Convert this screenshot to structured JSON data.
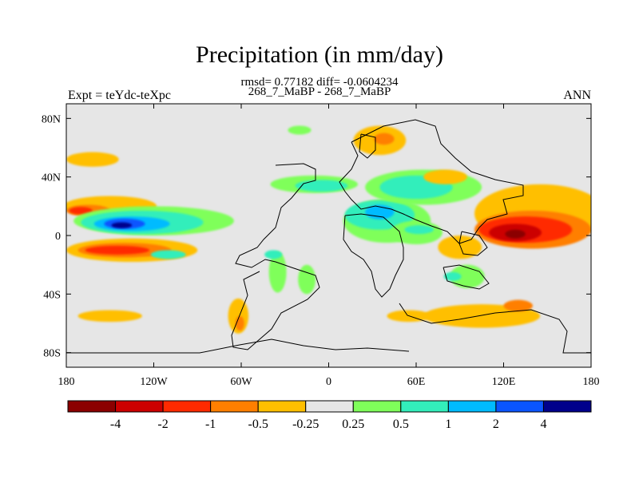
{
  "chart_data": {
    "type": "heatmap",
    "title": "Precipitation (in mm/day)",
    "subtitle_stats": "rmsd= 0.77182 diff= -0.0604234",
    "subtitle_cases": "268_7_MaBP - 268_7_MaBP",
    "left_label": "Expt = teYdc-teXpc",
    "right_label": "ANN",
    "xlim": [
      -180,
      180
    ],
    "ylim": [
      -90,
      90
    ],
    "x_ticks": [
      {
        "value": -180,
        "label": "180"
      },
      {
        "value": -120,
        "label": "120W"
      },
      {
        "value": -60,
        "label": "60W"
      },
      {
        "value": 0,
        "label": "0"
      },
      {
        "value": 60,
        "label": "60E"
      },
      {
        "value": 120,
        "label": "120E"
      },
      {
        "value": 180,
        "label": "180"
      }
    ],
    "y_ticks": [
      {
        "value": 80,
        "label": "80N"
      },
      {
        "value": 40,
        "label": "40N"
      },
      {
        "value": 0,
        "label": "0"
      },
      {
        "value": -40,
        "label": "40S"
      },
      {
        "value": -80,
        "label": "80S"
      }
    ],
    "colorbar": {
      "colors": [
        "#8b0000",
        "#cc0000",
        "#ff2a00",
        "#ff7f00",
        "#ffbf00",
        "#e6e6e6",
        "#7fff5a",
        "#33eebb",
        "#00bbff",
        "#0a55ff",
        "#00008b"
      ],
      "levels": [
        "-4",
        "-2",
        "-1",
        "-0.5",
        "-0.25",
        "0.25",
        "0.5",
        "1",
        "2",
        "4"
      ]
    },
    "regions": [
      {
        "name": "n-pacific-drying",
        "value": -0.3,
        "color": "#ffbf00",
        "lon": -150,
        "lat": 20,
        "rlon": 32,
        "rlat": 7
      },
      {
        "name": "n-pacific-drying-core",
        "value": -0.7,
        "color": "#ff7f00",
        "lon": -165,
        "lat": 17,
        "rlon": 15,
        "rlat": 4
      },
      {
        "name": "n-pacific-drying-strong",
        "value": -1.5,
        "color": "#ff2a00",
        "lon": -170,
        "lat": 17,
        "rlon": 8,
        "rlat": 2.5
      },
      {
        "name": "n-pacific-midlat-dry",
        "value": -0.3,
        "color": "#ffbf00",
        "lon": -162,
        "lat": 52,
        "rlon": 18,
        "rlat": 5
      },
      {
        "name": "pacific-itcz-wet",
        "value": 0.4,
        "color": "#7fff5a",
        "lon": -120,
        "lat": 10,
        "rlon": 55,
        "rlat": 10
      },
      {
        "name": "pacific-itcz-wet-1",
        "value": 0.8,
        "color": "#33eebb",
        "lon": -128,
        "lat": 9,
        "rlon": 42,
        "rlat": 8
      },
      {
        "name": "pacific-itcz-wet-2",
        "value": 1.5,
        "color": "#00bbff",
        "lon": -135,
        "lat": 8,
        "rlon": 26,
        "rlat": 5
      },
      {
        "name": "pacific-itcz-wet-3",
        "value": 3.0,
        "color": "#0a55ff",
        "lon": -140,
        "lat": 8,
        "rlon": 14,
        "rlat": 3.5
      },
      {
        "name": "pacific-itcz-wet-4",
        "value": 5.0,
        "color": "#00008b",
        "lon": -142,
        "lat": 7,
        "rlon": 7,
        "rlat": 2
      },
      {
        "name": "s-pacific-drying",
        "value": -0.3,
        "color": "#ffbf00",
        "lon": -135,
        "lat": -10,
        "rlon": 45,
        "rlat": 8
      },
      {
        "name": "s-pacific-drying-1",
        "value": -0.7,
        "color": "#ff7f00",
        "lon": -140,
        "lat": -10,
        "rlon": 32,
        "rlat": 5
      },
      {
        "name": "s-pacific-drying-2",
        "value": -1.5,
        "color": "#ff2a00",
        "lon": -145,
        "lat": -10,
        "rlon": 22,
        "rlat": 3
      },
      {
        "name": "s-pacific-wet-patch",
        "value": 0.8,
        "color": "#33eebb",
        "lon": -110,
        "lat": -13,
        "rlon": 12,
        "rlat": 3
      },
      {
        "name": "sh-midlat-dry",
        "value": -0.3,
        "color": "#ffbf00",
        "lon": -150,
        "lat": -55,
        "rlon": 22,
        "rlat": 4
      },
      {
        "name": "south-america-dry",
        "value": -0.3,
        "color": "#ffbf00",
        "lon": -62,
        "lat": -55,
        "rlon": 7,
        "rlat": 12
      },
      {
        "name": "south-america-dry-core",
        "value": -0.7,
        "color": "#ff7f00",
        "lon": -61,
        "lat": -60,
        "rlon": 3,
        "rlat": 5
      },
      {
        "name": "s-atlantic-wet",
        "value": 0.4,
        "color": "#7fff5a",
        "lon": -35,
        "lat": -25,
        "rlon": 6,
        "rlat": 14
      },
      {
        "name": "s-atlantic-wet-2",
        "value": 0.4,
        "color": "#7fff5a",
        "lon": -15,
        "lat": -30,
        "rlon": 6,
        "rlat": 10
      },
      {
        "name": "s-atlantic-cyan",
        "value": 0.8,
        "color": "#33eebb",
        "lon": -38,
        "lat": -13,
        "rlon": 6,
        "rlat": 3
      },
      {
        "name": "atlantic-nh-wet",
        "value": 0.4,
        "color": "#7fff5a",
        "lon": -10,
        "lat": 35,
        "rlon": 30,
        "rlat": 6
      },
      {
        "name": "atlantic-nh-wet-2",
        "value": 0.8,
        "color": "#33eebb",
        "lon": -5,
        "lat": 34,
        "rlon": 18,
        "rlat": 4
      },
      {
        "name": "arctic-wet",
        "value": 0.4,
        "color": "#7fff5a",
        "lon": -20,
        "lat": 72,
        "rlon": 8,
        "rlat": 3
      },
      {
        "name": "europe-dry",
        "value": -0.3,
        "color": "#ffbf00",
        "lon": 35,
        "lat": 65,
        "rlon": 18,
        "rlat": 10
      },
      {
        "name": "europe-dry-core",
        "value": -0.7,
        "color": "#ff7f00",
        "lon": 38,
        "lat": 66,
        "rlon": 7,
        "rlat": 4
      },
      {
        "name": "africa-wet",
        "value": 0.4,
        "color": "#7fff5a",
        "lon": 40,
        "lat": 10,
        "rlon": 30,
        "rlat": 15
      },
      {
        "name": "africa-wet-1",
        "value": 0.8,
        "color": "#33eebb",
        "lon": 35,
        "lat": 14,
        "rlon": 24,
        "rlat": 10
      },
      {
        "name": "africa-wet-2",
        "value": 1.5,
        "color": "#00bbff",
        "lon": 35,
        "lat": 16,
        "rlon": 10,
        "rlat": 5
      },
      {
        "name": "asia-wet",
        "value": 0.4,
        "color": "#7fff5a",
        "lon": 65,
        "lat": 33,
        "rlon": 40,
        "rlat": 12
      },
      {
        "name": "asia-wet-1",
        "value": 0.8,
        "color": "#33eebb",
        "lon": 60,
        "lat": 33,
        "rlon": 25,
        "rlat": 8
      },
      {
        "name": "n-indian-wet",
        "value": 0.4,
        "color": "#7fff5a",
        "lon": 60,
        "lat": 2,
        "rlon": 18,
        "rlat": 8
      },
      {
        "name": "n-indian-wet-2",
        "value": 0.8,
        "color": "#33eebb",
        "lon": 62,
        "lat": 4,
        "rlon": 10,
        "rlat": 3
      },
      {
        "name": "east-asia-dry",
        "value": -0.3,
        "color": "#ffbf00",
        "lon": 80,
        "lat": 40,
        "rlon": 15,
        "rlat": 5
      },
      {
        "name": "w-pacific-dry",
        "value": -0.3,
        "color": "#ffbf00",
        "lon": 145,
        "lat": 15,
        "rlon": 45,
        "rlat": 20
      },
      {
        "name": "w-pacific-dry-1",
        "value": -0.7,
        "color": "#ff7f00",
        "lon": 140,
        "lat": 4,
        "rlon": 40,
        "rlat": 13
      },
      {
        "name": "w-pacific-dry-2",
        "value": -1.5,
        "color": "#ff2a00",
        "lon": 135,
        "lat": 4,
        "rlon": 32,
        "rlat": 9
      },
      {
        "name": "w-pacific-dry-3",
        "value": -3.0,
        "color": "#cc0000",
        "lon": 128,
        "lat": 2,
        "rlon": 18,
        "rlat": 6
      },
      {
        "name": "w-pacific-dry-4",
        "value": -5.0,
        "color": "#8b0000",
        "lon": 128,
        "lat": 1,
        "rlon": 7,
        "rlat": 3
      },
      {
        "name": "indian-ocean-dry",
        "value": -0.3,
        "color": "#ffbf00",
        "lon": 90,
        "lat": -8,
        "rlon": 15,
        "rlat": 8
      },
      {
        "name": "australia-wet",
        "value": 0.4,
        "color": "#7fff5a",
        "lon": 95,
        "lat": -28,
        "rlon": 12,
        "rlat": 8
      },
      {
        "name": "indian-sh-wet",
        "value": 0.8,
        "color": "#33eebb",
        "lon": 85,
        "lat": -28,
        "rlon": 6,
        "rlat": 3
      },
      {
        "name": "sh-indian-dry",
        "value": -0.3,
        "color": "#ffbf00",
        "lon": 105,
        "lat": -55,
        "rlon": 40,
        "rlat": 8
      },
      {
        "name": "sh-indian-dry-core",
        "value": -0.7,
        "color": "#ff7f00",
        "lon": 130,
        "lat": -48,
        "rlon": 10,
        "rlat": 4
      },
      {
        "name": "sh-atlantic-dry",
        "value": -0.3,
        "color": "#ffbf00",
        "lon": 55,
        "lat": -55,
        "rlon": 15,
        "rlat": 4
      }
    ]
  }
}
